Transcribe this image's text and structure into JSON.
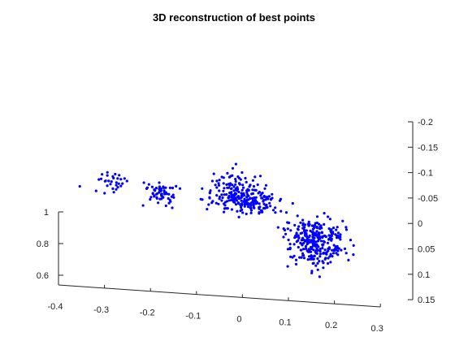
{
  "chart_data": {
    "type": "scatter",
    "title": "3D reconstruction of best points",
    "xlabel": "",
    "ylabel": "",
    "zlabel": "",
    "grid": false,
    "marker_color": "#0000ff",
    "x_axis": {
      "range": [
        -0.4,
        0.3
      ],
      "ticks": [
        "-0.4",
        "-0.3",
        "-0.2",
        "-0.1",
        "0",
        "0.1",
        "0.2",
        "0.3"
      ]
    },
    "y_axis": {
      "range": [
        -0.2,
        0.15
      ],
      "ticks": [
        "-0.2",
        "-0.15",
        "-0.1",
        "-0.05",
        "0",
        "0.05",
        "0.1",
        "0.15"
      ]
    },
    "z_axis": {
      "range": [
        0.5,
        1.0
      ],
      "ticks": [
        "0.6",
        "0.8",
        "1"
      ]
    },
    "clusters": [
      {
        "x": [
          -0.33,
          -0.26
        ],
        "y": [
          -0.06,
          -0.1
        ],
        "z": [
          0.8,
          0.9
        ],
        "count": 30
      },
      {
        "x": [
          -0.23,
          -0.14
        ],
        "y": [
          -0.09,
          -0.13
        ],
        "z": [
          0.74,
          0.86
        ],
        "count": 60
      },
      {
        "x": [
          -0.1,
          0.06
        ],
        "y": [
          -0.14,
          -0.18
        ],
        "z": [
          0.72,
          0.92
        ],
        "count": 120
      },
      {
        "x": [
          -0.09,
          0.1
        ],
        "y": [
          -0.05,
          -0.09
        ],
        "z": [
          0.75,
          0.87
        ],
        "count": 140
      },
      {
        "x": [
          0.08,
          0.24
        ],
        "y": [
          -0.03,
          0.01
        ],
        "z": [
          0.6,
          0.8
        ],
        "count": 220
      },
      {
        "x": [
          0.1,
          0.2
        ],
        "y": [
          -0.15,
          0.1
        ],
        "z": [
          0.55,
          0.75
        ],
        "count": 80
      }
    ],
    "outliers": [
      {
        "x": -0.22,
        "y": 0.02,
        "z": 0.8
      },
      {
        "x": -0.36,
        "y": -0.06,
        "z": 0.83
      }
    ]
  }
}
